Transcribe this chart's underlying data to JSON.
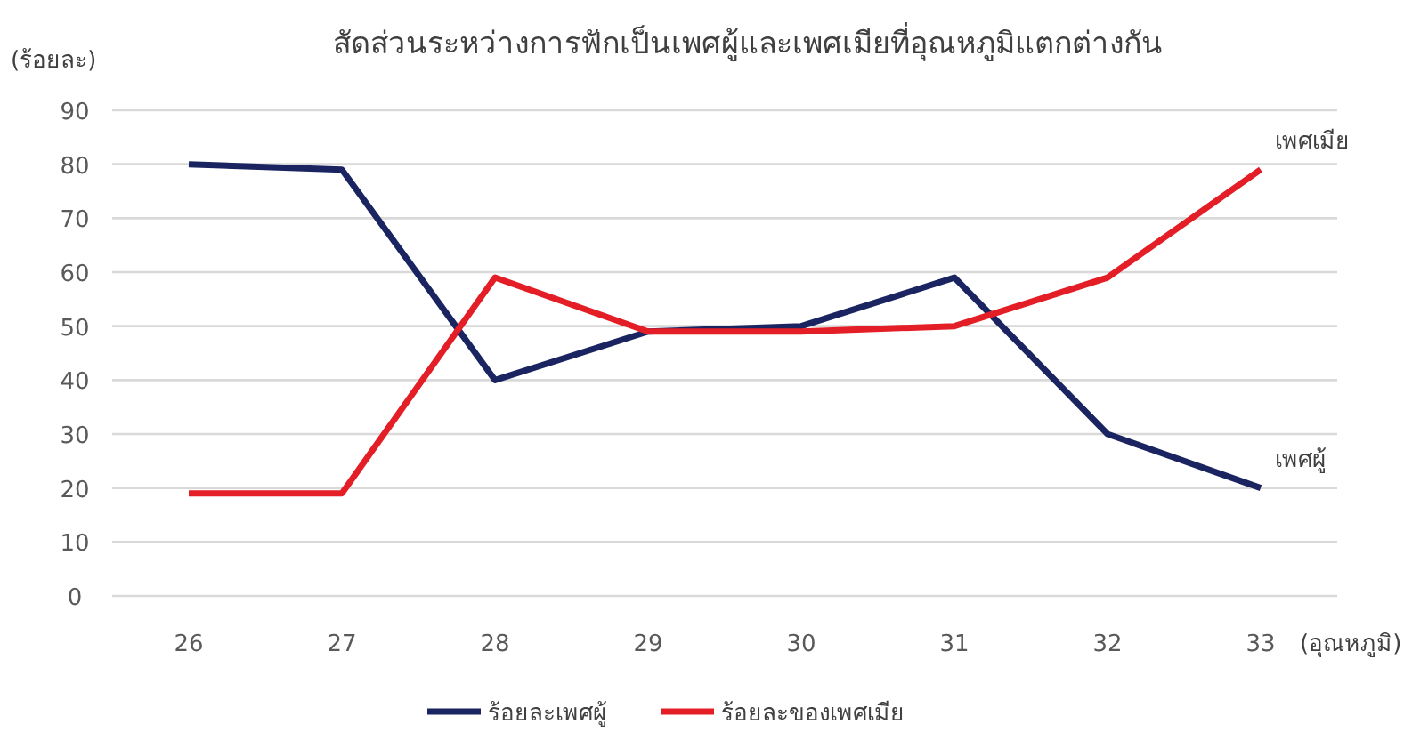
{
  "chart_data": {
    "type": "line",
    "title": "สัดส่วนระหว่างการฟักเป็นเพศผู้และเพศเมียที่อุณหภูมิแตกต่างกัน",
    "ylabel": "(ร้อยละ)",
    "xlabel": "(อุณหภูมิ)",
    "categories": [
      "26",
      "27",
      "28",
      "29",
      "30",
      "31",
      "32",
      "33"
    ],
    "series": [
      {
        "name": "ร้อยละเพศผู้",
        "color": "#1a2460",
        "values": [
          80,
          79,
          40,
          49,
          50,
          59,
          30,
          20
        ]
      },
      {
        "name": "ร้อยละของเพศเมีย",
        "color": "#e41e26",
        "values": [
          19,
          19,
          59,
          49,
          49,
          50,
          59,
          79
        ]
      }
    ],
    "ylim": [
      0,
      90
    ],
    "yticks": [
      0,
      10,
      20,
      30,
      40,
      50,
      60,
      70,
      80,
      90
    ],
    "grid": "y",
    "legend": "bottom",
    "marker": "none",
    "line_style": "solid",
    "annotations": [
      {
        "text": "เพศเมีย",
        "x": "33",
        "y": 79
      },
      {
        "text": "เพศผู้",
        "x": "33",
        "y": 20
      }
    ]
  }
}
